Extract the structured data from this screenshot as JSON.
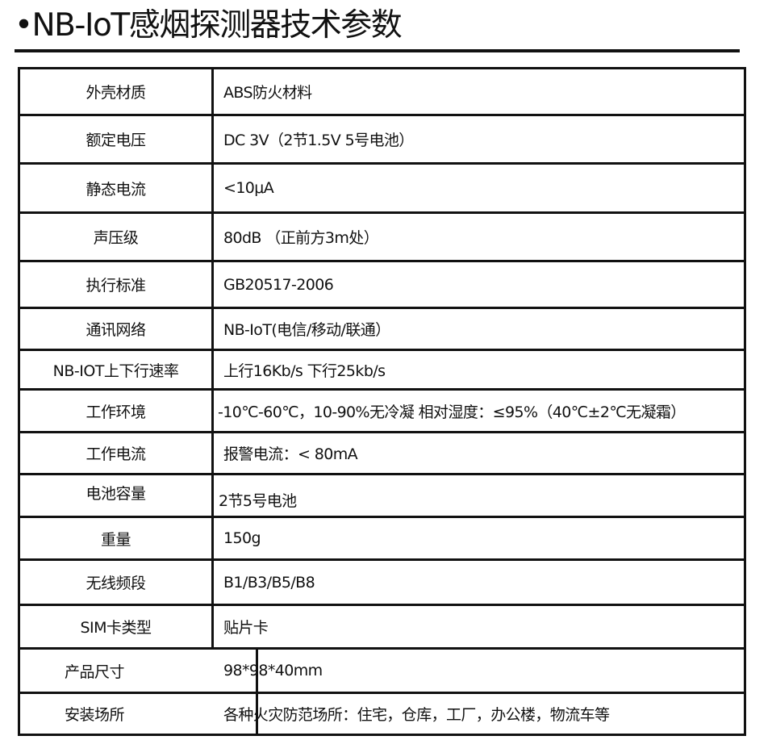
{
  "title": "•NB-IoT感烟探测器技术参数",
  "rows": [
    {
      "label": "外壳材质",
      "value": "ABS防火材料"
    },
    {
      "label": "额定电压",
      "value": "DC 3V（2节1.5V 5号电池）"
    },
    {
      "label": "静态电流",
      "value": "<10μA"
    },
    {
      "label": "声压级",
      "value": "80dB （正前方3m处）"
    },
    {
      "label": "执行标准",
      "value": "GB20517-2006"
    },
    {
      "label": "通讯网络",
      "value": "NB-IoT(电信/移动/联通）"
    },
    {
      "label": "NB-IOT上下行速率",
      "value": "上行16Kb/s  下行25kb/s"
    },
    {
      "label": "工作环境",
      "value": "-10℃-60℃，10-90%无冷凝 相对湿度：≤95%（40℃±2℃无凝霜）"
    },
    {
      "label": "工作电流",
      "value": "报警电流：< 80mA"
    },
    {
      "label": "电池容量",
      "value": "2节5号电池"
    },
    {
      "label": "重量",
      "value": "150g"
    },
    {
      "label": "无线频段",
      "value": "B1/B3/B5/B8"
    },
    {
      "label": "SIM卡类型",
      "value": "贴片卡"
    },
    {
      "label": "产品尺寸",
      "value": "98*98*40mm"
    },
    {
      "label": "安装场所",
      "value": "各种火灾防范场所：住宅，仓库，工厂，办公楼，物流车等"
    }
  ]
}
